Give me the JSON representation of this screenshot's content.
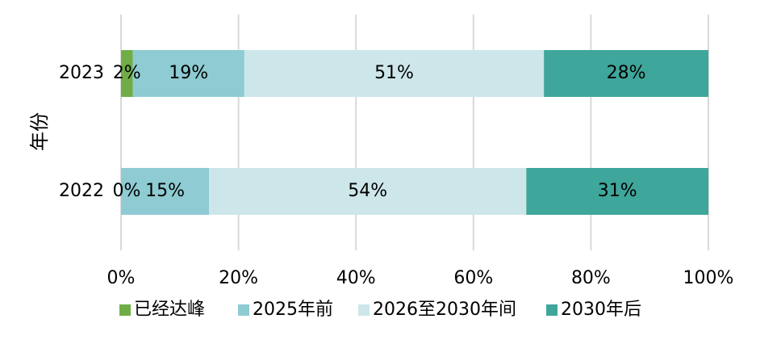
{
  "chart_data": {
    "type": "bar",
    "orientation": "horizontal",
    "stacked": true,
    "percent": true,
    "categories": [
      "2023",
      "2022"
    ],
    "series": [
      {
        "name": "已经达峰",
        "color": "#70ad47",
        "values": [
          2,
          0
        ]
      },
      {
        "name": "2025年前",
        "color": "#8ecbd2",
        "values": [
          19,
          15
        ]
      },
      {
        "name": "2026至2030年间",
        "color": "#cde6ea",
        "values": [
          51,
          54
        ]
      },
      {
        "name": "2030年后",
        "color": "#3fa69b",
        "values": [
          28,
          31
        ]
      }
    ],
    "data_labels": [
      [
        "2%",
        "19%",
        "51%",
        "28%"
      ],
      [
        "0%",
        "15%",
        "54%",
        "31%"
      ]
    ],
    "xlim": [
      0,
      100
    ],
    "xticks": [
      "0%",
      "20%",
      "40%",
      "60%",
      "80%",
      "100%"
    ],
    "title": "",
    "xlabel": "",
    "ylabel": "年份",
    "grid": "vertical",
    "legend": "bottom"
  }
}
